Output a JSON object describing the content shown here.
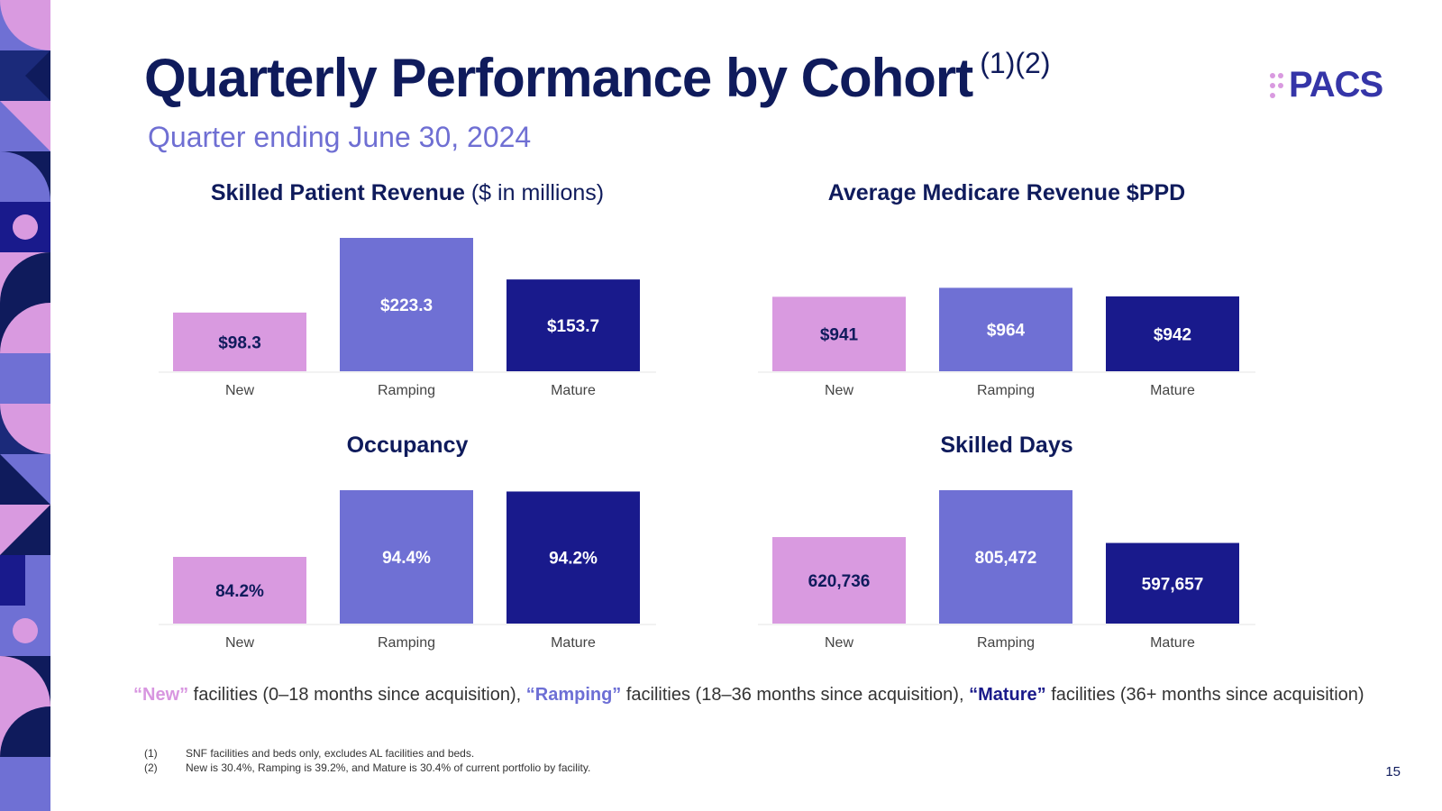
{
  "header": {
    "title": "Quarterly Performance by Cohort",
    "title_note": "(1)(2)",
    "subtitle": "Quarter ending June 30, 2024",
    "logo": "PACS"
  },
  "colors": {
    "new": "#d99ae0",
    "ramping": "#6f70d4",
    "mature": "#191a8c",
    "navy": "#0f1b5c"
  },
  "chart_data": [
    {
      "type": "bar",
      "title": "Skilled Patient Revenue",
      "title_unit": "($ in millions)",
      "categories": [
        "New",
        "Ramping",
        "Mature"
      ],
      "values": [
        98.3,
        223.3,
        153.7
      ],
      "labels": [
        "$98.3",
        "$223.3",
        "$153.7"
      ],
      "ylim": [
        0,
        223.3
      ]
    },
    {
      "type": "bar",
      "title": "Average Medicare Revenue $PPD",
      "title_unit": "",
      "categories": [
        "New",
        "Ramping",
        "Mature"
      ],
      "values": [
        941,
        964,
        942
      ],
      "labels": [
        "$941",
        "$964",
        "$942"
      ],
      "ylim": [
        750,
        1092
      ]
    },
    {
      "type": "bar",
      "title": "Occupancy",
      "title_unit": "",
      "categories": [
        "New",
        "Ramping",
        "Mature"
      ],
      "values": [
        84.2,
        94.4,
        94.2
      ],
      "labels": [
        "84.2%",
        "94.4%",
        "94.2%"
      ],
      "ylim": [
        74,
        94.4
      ]
    },
    {
      "type": "bar",
      "title": "Skilled Days",
      "title_unit": "",
      "categories": [
        "New",
        "Ramping",
        "Mature"
      ],
      "values": [
        620736,
        805472,
        597657
      ],
      "labels": [
        "620,736",
        "805,472",
        "597,657"
      ],
      "ylim": [
        280000,
        805472
      ]
    }
  ],
  "legend": {
    "new_label": "“New”",
    "new_text": " facilities (0–18 months since acquisition), ",
    "ramping_label": "“Ramping”",
    "ramping_text": " facilities (18–36 months since acquisition), ",
    "mature_label": "“Mature”",
    "mature_text": " facilities (36+ months since acquisition)"
  },
  "footnotes": [
    {
      "num": "(1)",
      "text": "SNF facilities and beds only, excludes AL facilities and beds."
    },
    {
      "num": "(2)",
      "text": "New is 30.4%, Ramping is 39.2%, and Mature is 30.4% of current portfolio by facility."
    }
  ],
  "page_number": "15"
}
